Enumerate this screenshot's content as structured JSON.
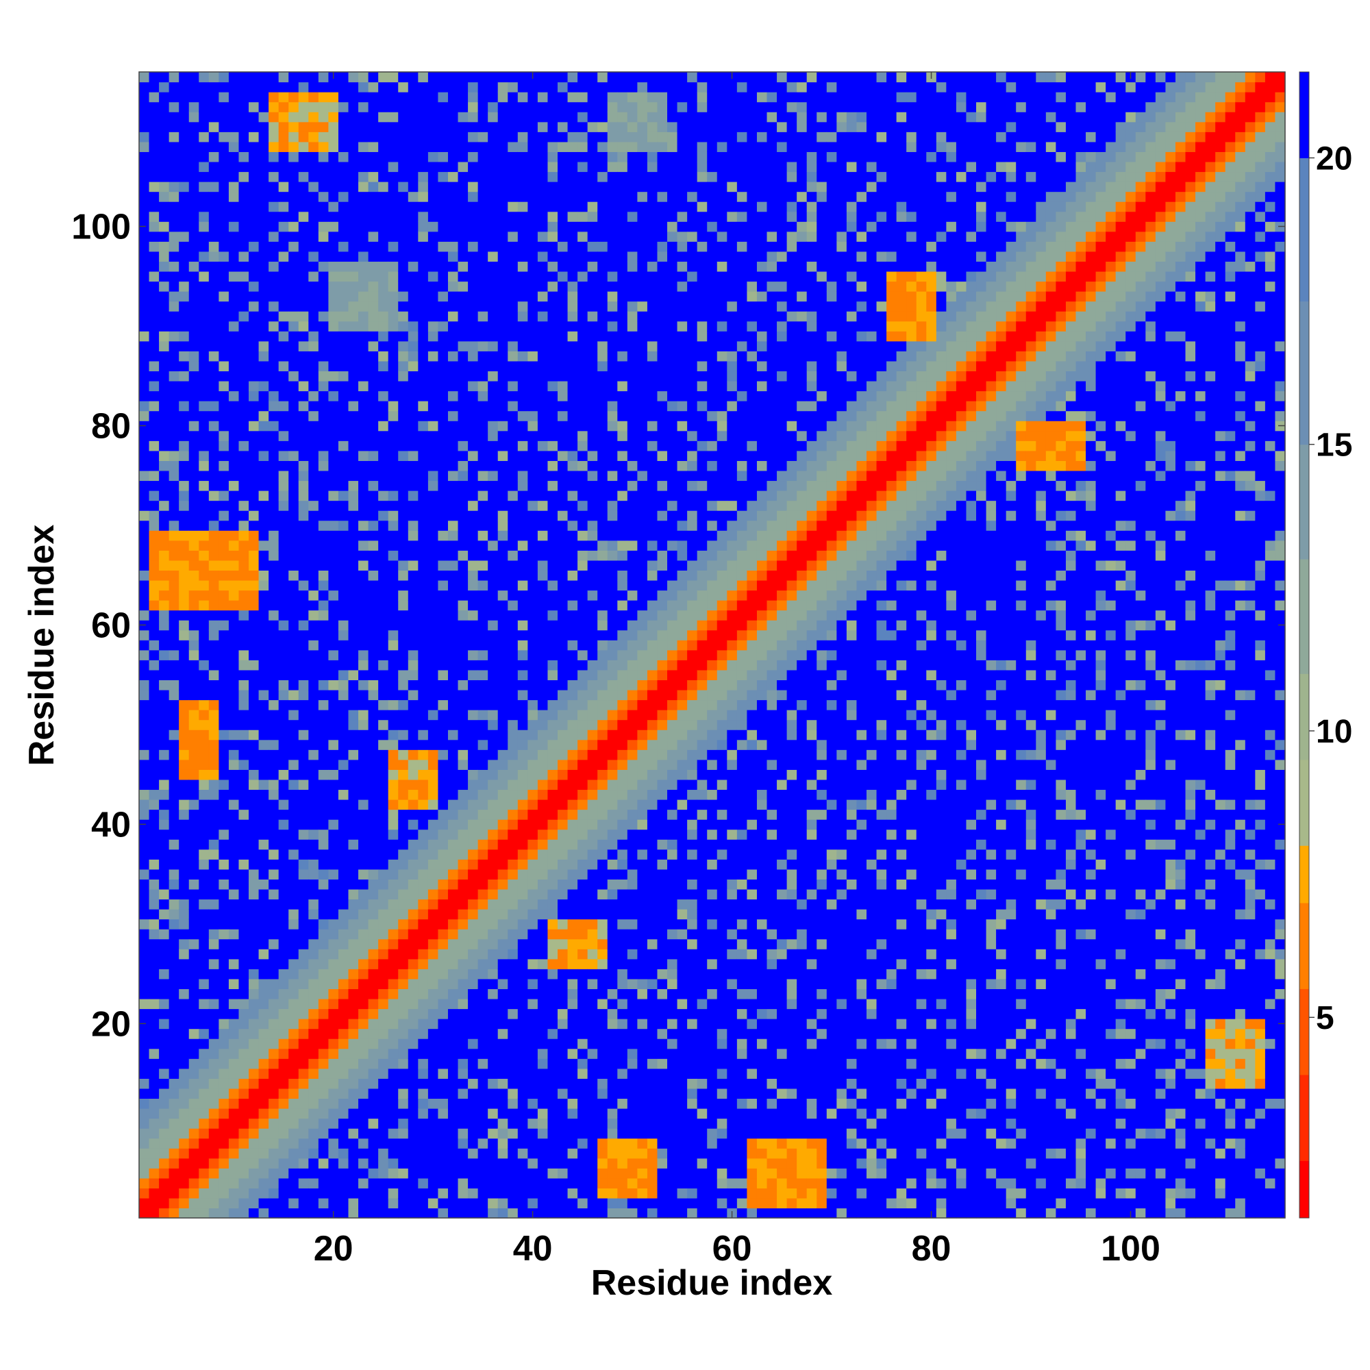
{
  "chart_data": {
    "type": "heatmap",
    "title": "",
    "xlabel": "Residue index",
    "ylabel": "Residue index",
    "n_residues": 115,
    "xlim": [
      1,
      115
    ],
    "ylim": [
      1,
      115
    ],
    "xticks": [
      20,
      40,
      60,
      80,
      100
    ],
    "yticks": [
      20,
      40,
      60,
      80,
      100
    ],
    "colorbar": {
      "ticks": [
        5,
        10,
        15,
        20
      ],
      "range": [
        1.5,
        21.5
      ],
      "saturated_color": "#0000ff",
      "levels": [
        {
          "max": 2.5,
          "color": "#ff0000"
        },
        {
          "max": 4.0,
          "color": "#ff2b00"
        },
        {
          "max": 5.5,
          "color": "#ff5500"
        },
        {
          "max": 7.0,
          "color": "#ff7f00"
        },
        {
          "max": 8.0,
          "color": "#ffaa00"
        },
        {
          "max": 9.5,
          "color": "#a8b98a"
        },
        {
          "max": 11.0,
          "color": "#9fb48e"
        },
        {
          "max": 13.0,
          "color": "#8fa99a"
        },
        {
          "max": 15.0,
          "color": "#7e9ca8"
        },
        {
          "max": 17.5,
          "color": "#6c8fb4"
        },
        {
          "max": 20.0,
          "color": "#5b84be"
        },
        {
          "max": 21.5,
          "color": "#0000ff"
        }
      ]
    },
    "contact_regions": [
      {
        "i": [
          5,
          8
        ],
        "j": [
          45,
          52
        ],
        "value": 5.5
      },
      {
        "i": [
          2,
          12
        ],
        "j": [
          62,
          69
        ],
        "value": 5.5
      },
      {
        "i": [
          47,
          52
        ],
        "j": [
          3,
          8
        ],
        "value": 5.5
      },
      {
        "i": [
          62,
          69
        ],
        "j": [
          2,
          8
        ],
        "value": 5.5
      },
      {
        "i": [
          76,
          80
        ],
        "j": [
          89,
          95
        ],
        "value": 5.5
      },
      {
        "i": [
          89,
          95
        ],
        "j": [
          76,
          80
        ],
        "value": 5.5
      },
      {
        "i": [
          26,
          30
        ],
        "j": [
          42,
          47
        ],
        "value": 6.0
      },
      {
        "i": [
          42,
          47
        ],
        "j": [
          26,
          30
        ],
        "value": 6.0
      },
      {
        "i": [
          14,
          20
        ],
        "j": [
          108,
          113
        ],
        "value": 6.5
      },
      {
        "i": [
          108,
          113
        ],
        "j": [
          14,
          20
        ],
        "value": 6.5
      },
      {
        "i": [
          48,
          53
        ],
        "j": [
          108,
          113
        ],
        "value": 12.0
      },
      {
        "i": [
          20,
          26
        ],
        "j": [
          90,
          96
        ],
        "value": 12.0
      }
    ]
  }
}
